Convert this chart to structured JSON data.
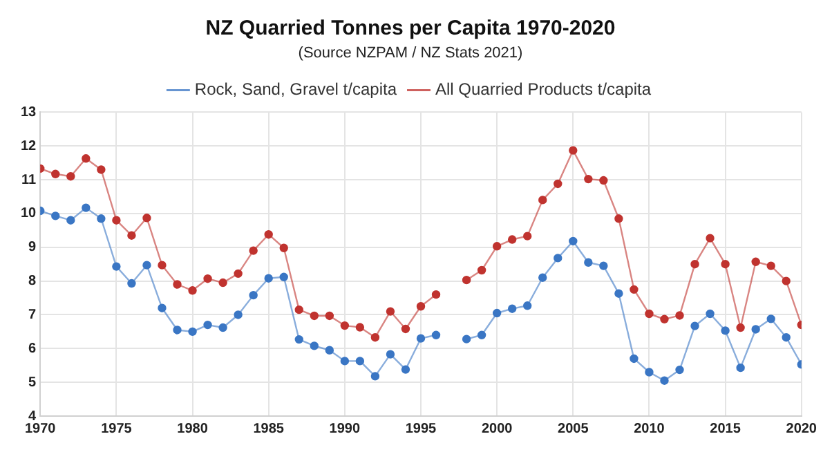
{
  "chart_data": {
    "type": "line",
    "title": "NZ Quarried Tonnes per Capita 1970-2020",
    "subtitle": "(Source NZPAM / NZ Stats 2021)",
    "x": [
      1970,
      1971,
      1972,
      1973,
      1974,
      1975,
      1976,
      1977,
      1978,
      1979,
      1980,
      1981,
      1982,
      1983,
      1984,
      1985,
      1986,
      1987,
      1988,
      1989,
      1990,
      1991,
      1992,
      1993,
      1994,
      1995,
      1996,
      1997,
      1998,
      1999,
      2000,
      2001,
      2002,
      2003,
      2004,
      2005,
      2006,
      2007,
      2008,
      2009,
      2010,
      2011,
      2012,
      2013,
      2014,
      2015,
      2016,
      2017,
      2018,
      2019,
      2020
    ],
    "series": [
      {
        "name": "Rock, Sand, Gravel t/capita",
        "color": "#3a76c4",
        "values": [
          10.08,
          9.93,
          9.8,
          10.17,
          9.85,
          8.43,
          7.93,
          8.47,
          7.2,
          6.55,
          6.5,
          6.7,
          6.62,
          7.0,
          7.58,
          8.08,
          8.12,
          6.27,
          6.08,
          5.95,
          5.63,
          5.63,
          5.18,
          5.83,
          5.38,
          6.3,
          6.4,
          null,
          6.28,
          6.4,
          7.05,
          7.18,
          7.27,
          8.1,
          8.68,
          9.18,
          8.55,
          8.45,
          7.63,
          5.7,
          5.3,
          5.05,
          5.37,
          6.67,
          7.03,
          6.53,
          5.43,
          6.57,
          6.88,
          6.33,
          5.53
        ]
      },
      {
        "name": "All Quarried Products t/capita",
        "color": "#c0332f",
        "values": [
          11.33,
          11.17,
          11.1,
          11.63,
          11.3,
          9.8,
          9.35,
          9.87,
          8.47,
          7.9,
          7.72,
          8.07,
          7.95,
          8.22,
          8.9,
          9.38,
          8.98,
          7.15,
          6.97,
          6.97,
          6.68,
          6.63,
          6.33,
          7.1,
          6.58,
          7.25,
          7.6,
          null,
          8.03,
          8.32,
          9.03,
          9.23,
          9.33,
          10.4,
          10.88,
          11.87,
          11.02,
          10.98,
          9.85,
          7.75,
          7.03,
          6.87,
          6.98,
          8.5,
          9.27,
          8.5,
          6.62,
          8.57,
          8.45,
          8.0,
          6.7
        ]
      }
    ],
    "xlim": [
      1970,
      2020
    ],
    "xticks": [
      1970,
      1975,
      1980,
      1985,
      1990,
      1995,
      2000,
      2005,
      2010,
      2015,
      2020
    ],
    "ylim": [
      4,
      13
    ],
    "yticks": [
      4,
      5,
      6,
      7,
      8,
      9,
      10,
      11,
      12,
      13
    ],
    "grid": true,
    "legend": "top",
    "marker": "circle",
    "line_style": "solid"
  }
}
